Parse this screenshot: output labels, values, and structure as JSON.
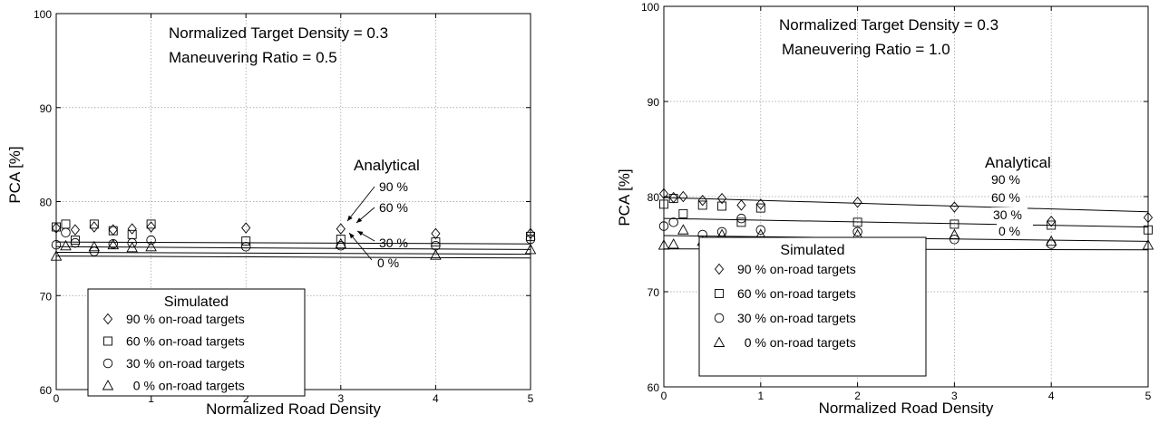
{
  "chart_data": [
    {
      "type": "scatter",
      "xlabel": "Normalized Road Density",
      "ylabel": "PCA [%]",
      "xlim": [
        0,
        5
      ],
      "ylim": [
        60,
        100
      ],
      "xticks": [
        "0",
        "1",
        "2",
        "3",
        "4",
        "5"
      ],
      "yticks": [
        "60",
        "70",
        "80",
        "90",
        "100"
      ],
      "grid": true,
      "annotations": [
        "Normalized Target Density = 0.3",
        "Maneuvering Ratio = 0.5"
      ],
      "analytical_label": "Analytical",
      "legend": {
        "title": "Simulated",
        "placement": "bottom-left",
        "entries": [
          "90 % on-road targets",
          "60 % on-road targets",
          "30 % on-road targets",
          "  0 % on-road targets"
        ]
      },
      "analytical_lines": [
        {
          "label": "90 %",
          "y_start": 75.7,
          "y_end": 75.5
        },
        {
          "label": "60 %",
          "y_start": 75.2,
          "y_end": 74.9
        },
        {
          "label": "30 %",
          "y_start": 74.6,
          "y_end": 74.4
        },
        {
          "label": "0 %",
          "y_start": 74.2,
          "y_end": 74.0
        }
      ],
      "series": [
        {
          "name": "90 % on-road targets",
          "marker": "diamond",
          "x": [
            0,
            0.2,
            0.4,
            0.6,
            0.8,
            1,
            2,
            3,
            4,
            5
          ],
          "y": [
            77.2,
            77.0,
            77.3,
            77.0,
            77.1,
            77.3,
            77.2,
            77.1,
            76.6,
            76.6
          ]
        },
        {
          "name": "60 % on-road targets",
          "marker": "square",
          "x": [
            0,
            0.1,
            0.2,
            0.4,
            0.6,
            0.8,
            1,
            2,
            3,
            4,
            5
          ],
          "y": [
            77.3,
            77.6,
            75.9,
            77.6,
            76.9,
            76.5,
            77.6,
            75.8,
            76.0,
            75.7,
            76.3
          ]
        },
        {
          "name": "30 % on-road targets",
          "marker": "circle",
          "x": [
            0,
            0.1,
            0.2,
            0.4,
            0.6,
            0.8,
            1,
            2,
            3,
            4,
            5
          ],
          "y": [
            75.4,
            76.7,
            75.6,
            74.7,
            75.5,
            75.6,
            75.9,
            75.2,
            75.3,
            75.3,
            76.0
          ]
        },
        {
          "name": "  0 % on-road targets",
          "marker": "triangle",
          "x": [
            0,
            0.1,
            0.4,
            0.6,
            0.8,
            1,
            3,
            4,
            5
          ],
          "y": [
            74.2,
            75.3,
            75.2,
            75.4,
            75.1,
            75.2,
            75.5,
            74.3,
            74.9
          ]
        }
      ]
    },
    {
      "type": "scatter",
      "xlabel": "Normalized Road Density",
      "ylabel": "PCA [%]",
      "xlim": [
        0,
        5
      ],
      "ylim": [
        60,
        100
      ],
      "xticks": [
        "0",
        "1",
        "2",
        "3",
        "4",
        "5"
      ],
      "yticks": [
        "60",
        "70",
        "80",
        "90",
        "100"
      ],
      "grid": true,
      "annotations": [
        "Normalized Target Density = 0.3",
        "Maneuvering Ratio = 1.0"
      ],
      "analytical_label": "Analytical",
      "legend": {
        "title": "Simulated",
        "placement": "bottom-left",
        "entries": [
          "90 % on-road targets",
          "60 % on-road targets",
          "30 % on-road targets",
          "  0 % on-road targets"
        ]
      },
      "analytical_lines": [
        {
          "label": "90 %",
          "y_start": 79.9,
          "y_end": 78.4
        },
        {
          "label": "60 %",
          "y_start": 77.7,
          "y_end": 76.8
        },
        {
          "label": "30 %",
          "y_start": 75.9,
          "y_end": 75.3
        },
        {
          "label": "0 %",
          "y_start": 74.5,
          "y_end": 74.4
        }
      ],
      "series": [
        {
          "name": "90 % on-road targets",
          "marker": "diamond",
          "x": [
            0,
            0.1,
            0.2,
            0.4,
            0.6,
            0.8,
            1,
            2,
            3,
            4,
            5
          ],
          "y": [
            80.3,
            79.9,
            80.0,
            79.6,
            79.8,
            79.1,
            79.2,
            79.4,
            78.9,
            77.4,
            77.8
          ]
        },
        {
          "name": "60 % on-road targets",
          "marker": "square",
          "x": [
            0,
            0.1,
            0.2,
            0.4,
            0.6,
            0.8,
            1,
            2,
            3,
            4,
            5
          ],
          "y": [
            79.2,
            79.8,
            78.2,
            79.1,
            79.0,
            77.3,
            78.8,
            77.3,
            77.1,
            77.0,
            76.5
          ]
        },
        {
          "name": "30 % on-road targets",
          "marker": "circle",
          "x": [
            0,
            0.1,
            0.4,
            0.6,
            0.8,
            1,
            2,
            3,
            4
          ],
          "y": [
            76.9,
            77.3,
            76.0,
            76.3,
            77.7,
            76.5,
            76.3,
            75.5,
            75.0
          ]
        },
        {
          "name": "  0 % on-road targets",
          "marker": "triangle",
          "x": [
            0,
            0.1,
            0.2,
            0.4,
            0.6,
            0.8,
            1,
            2,
            3,
            4,
            5
          ],
          "y": [
            74.9,
            75.0,
            76.5,
            75.3,
            76.0,
            75.1,
            76.0,
            76.0,
            76.0,
            75.3,
            74.9
          ]
        }
      ]
    }
  ]
}
